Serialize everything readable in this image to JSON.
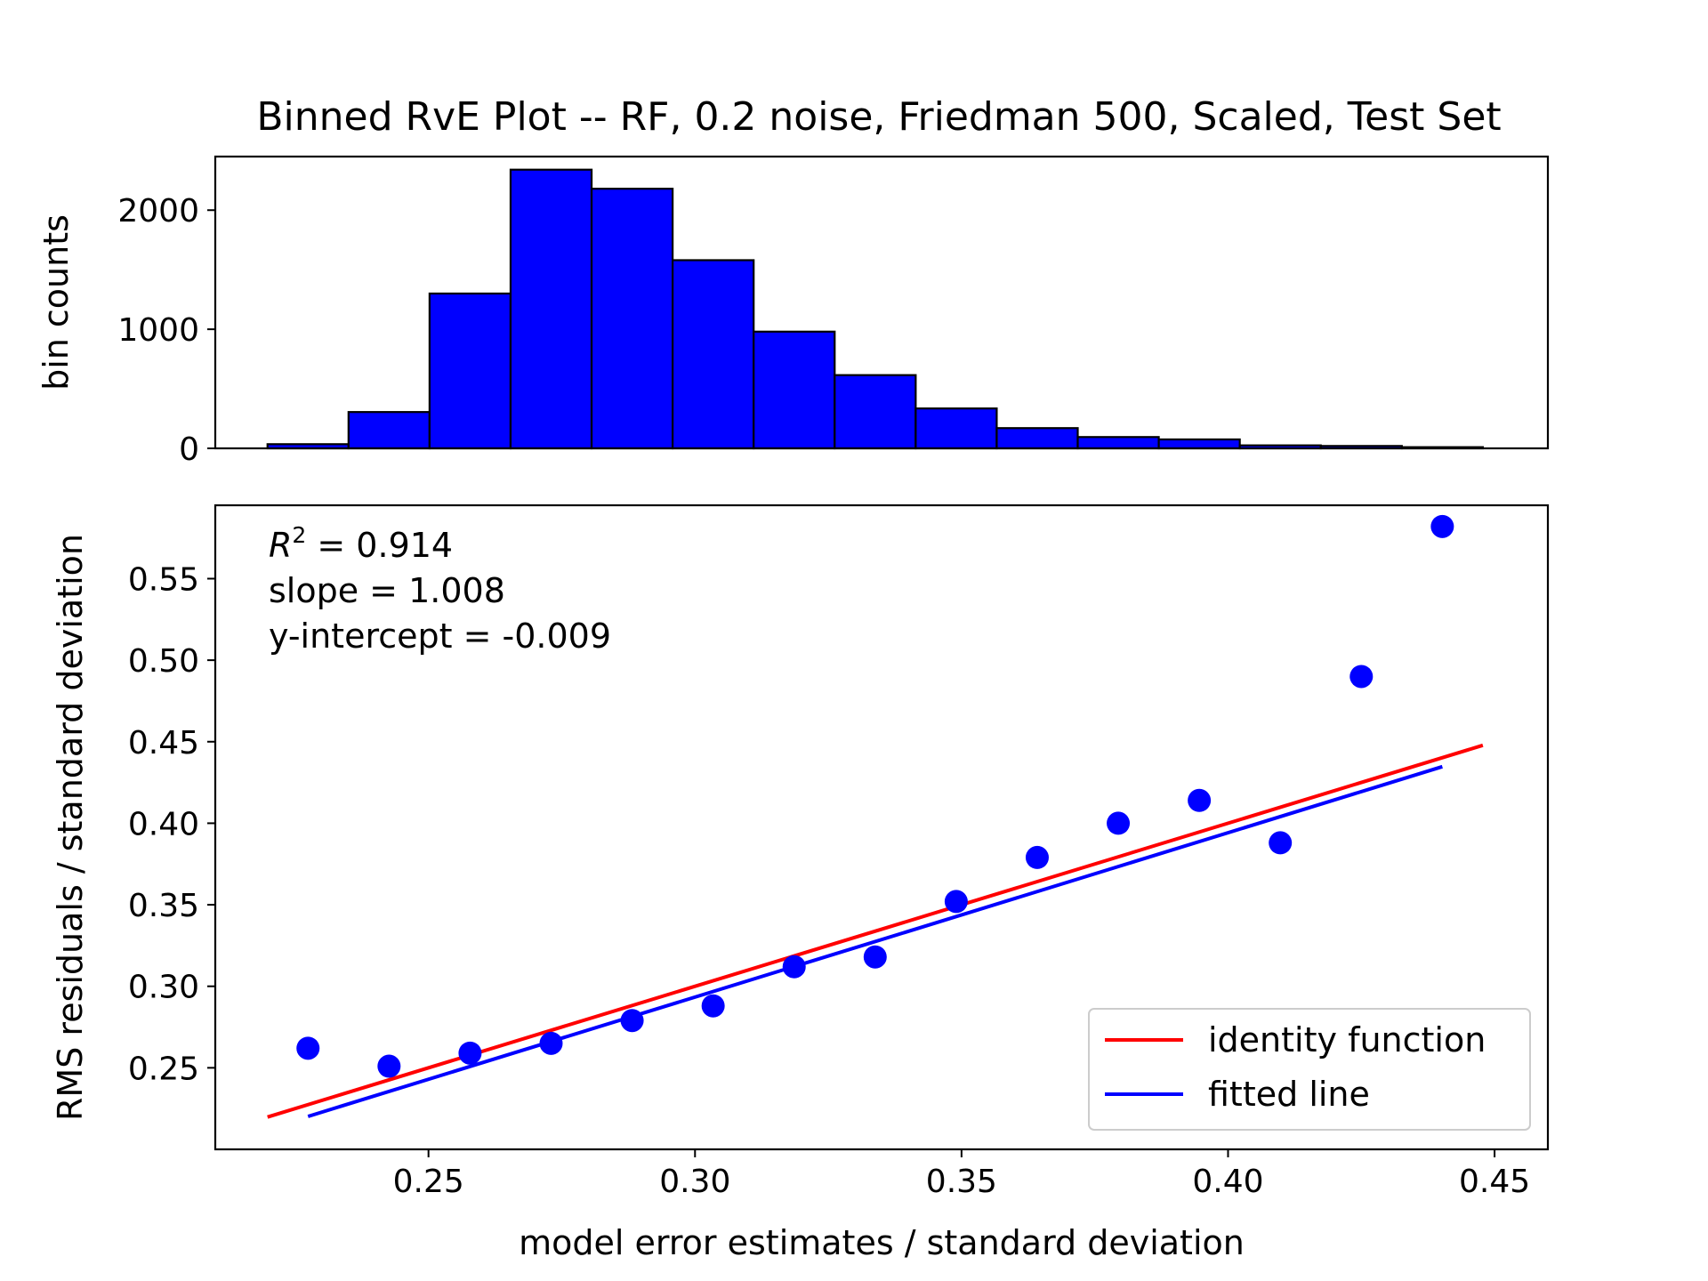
{
  "chart_data": [
    {
      "type": "bar",
      "title": "Binned RvE Plot -- RF, 0.2 noise, Friedman 500, Scaled, Test Set",
      "ylabel": "bin counts",
      "xlim": [
        0.21,
        0.46
      ],
      "ylim": [
        0,
        2450
      ],
      "yticks": [
        0,
        1000,
        2000
      ],
      "bar_color": "#0000ff",
      "edge_color": "#000000",
      "bin_edges": [
        0.2198,
        0.235,
        0.2502,
        0.2654,
        0.2806,
        0.2958,
        0.311,
        0.3262,
        0.3414,
        0.3566,
        0.3718,
        0.387,
        0.4022,
        0.4174,
        0.4326,
        0.4478
      ],
      "values": [
        35,
        305,
        1300,
        2340,
        2180,
        1580,
        980,
        615,
        335,
        170,
        95,
        75,
        25,
        20,
        10
      ]
    },
    {
      "type": "scatter",
      "xlabel": "model error estimates / standard deviation",
      "ylabel": "RMS residuals / standard deviation",
      "xlim": [
        0.21,
        0.46
      ],
      "ylim": [
        0.2,
        0.595
      ],
      "xticks": [
        "0.25",
        "0.30",
        "0.35",
        "0.40",
        "0.45"
      ],
      "yticks": [
        "0.25",
        "0.30",
        "0.35",
        "0.40",
        "0.45",
        "0.50",
        "0.55"
      ],
      "points": {
        "color": "#0000ff",
        "x": [
          0.2274,
          0.2426,
          0.2578,
          0.273,
          0.2882,
          0.3034,
          0.3186,
          0.3338,
          0.349,
          0.3642,
          0.3794,
          0.3946,
          0.4098,
          0.425,
          0.4402
        ],
        "y": [
          0.262,
          0.251,
          0.259,
          0.265,
          0.279,
          0.288,
          0.312,
          0.318,
          0.352,
          0.379,
          0.4,
          0.414,
          0.388,
          0.49,
          0.582
        ]
      },
      "lines": [
        {
          "name": "identity function",
          "color": "#ff0000",
          "x": [
            0.2198,
            0.4478
          ],
          "y": [
            0.2198,
            0.4478
          ]
        },
        {
          "name": "fitted line",
          "color": "#0000ff",
          "x": [
            0.2274,
            0.4402
          ],
          "y": [
            0.2202,
            0.4347
          ]
        }
      ],
      "stats": {
        "r2_value": " = 0.914",
        "slope": "slope = 1.008",
        "intercept": "y-intercept = -0.009"
      },
      "legend_position": "lower-right"
    }
  ]
}
